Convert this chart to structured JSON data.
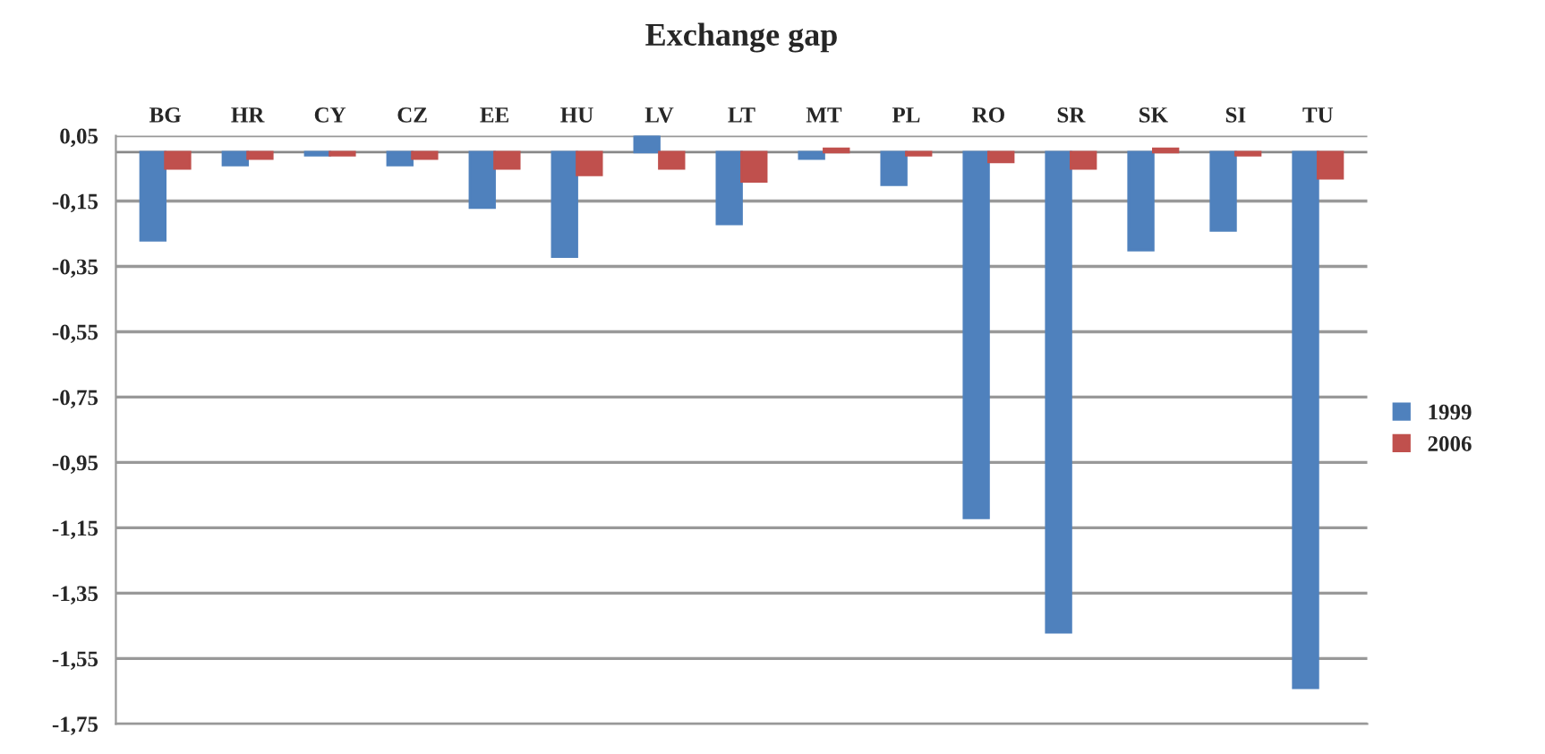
{
  "chart_data": {
    "type": "bar",
    "title": "Exchange gap",
    "categories": [
      "BG",
      "HR",
      "CY",
      "CZ",
      "EE",
      "HU",
      "LV",
      "LT",
      "MT",
      "PL",
      "RO",
      "SR",
      "SK",
      "SI",
      "TU"
    ],
    "series": [
      {
        "name": "1999",
        "color": "#4f81bd",
        "values": [
          -0.27,
          -0.04,
          -0.01,
          -0.04,
          -0.17,
          -0.32,
          0.05,
          -0.22,
          -0.02,
          -0.1,
          -1.12,
          -1.47,
          -0.3,
          -0.24,
          -1.64
        ]
      },
      {
        "name": "2006",
        "color": "#c0504d",
        "values": [
          -0.05,
          -0.02,
          -0.01,
          -0.02,
          -0.05,
          -0.07,
          -0.05,
          -0.09,
          0.01,
          -0.01,
          -0.03,
          -0.05,
          0.01,
          -0.01,
          -0.08
        ]
      }
    ],
    "ylim": [
      -1.75,
      0.05
    ],
    "yticks": [
      {
        "value": 0.05,
        "label": "0,05"
      },
      {
        "value": -0.15,
        "label": "-0,15"
      },
      {
        "value": -0.35,
        "label": "-0,35"
      },
      {
        "value": -0.55,
        "label": "-0,55"
      },
      {
        "value": -0.75,
        "label": "-0,75"
      },
      {
        "value": -0.95,
        "label": "-0,95"
      },
      {
        "value": -1.15,
        "label": "-1,15"
      },
      {
        "value": -1.35,
        "label": "-1,35"
      },
      {
        "value": -1.55,
        "label": "-1,55"
      },
      {
        "value": -1.75,
        "label": "-1,75"
      }
    ],
    "grid": "y",
    "legend": "right"
  }
}
